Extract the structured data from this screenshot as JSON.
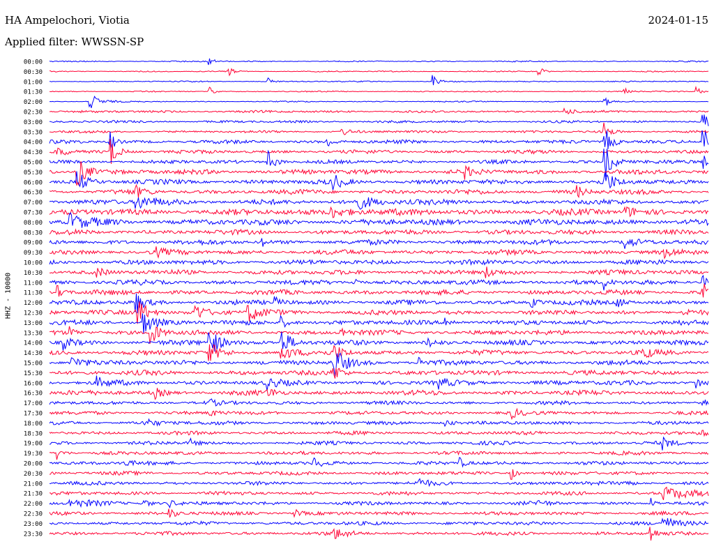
{
  "header": {
    "station": "HA Ampelochori, Viotia",
    "date": "2024-01-15",
    "filter": "Applied filter: WWSSN-SP"
  },
  "chart_data": {
    "type": "line",
    "title": "HA Ampelochori, Viotia",
    "date": "2024-01-15",
    "filter": "WWSSN-SP",
    "ylabel": "HHZ - 10000",
    "colors": {
      "even_hour": "#0000ff",
      "half_hour": "#ff0033"
    },
    "rows": [
      "00:00",
      "00:30",
      "01:00",
      "01:30",
      "02:00",
      "02:30",
      "03:00",
      "03:30",
      "04:00",
      "04:30",
      "05:00",
      "05:30",
      "06:00",
      "06:30",
      "07:00",
      "07:30",
      "08:00",
      "08:30",
      "09:00",
      "09:30",
      "10:00",
      "10:30",
      "11:00",
      "11:30",
      "12:00",
      "12:30",
      "13:00",
      "13:30",
      "14:00",
      "14:30",
      "15:00",
      "15:30",
      "16:00",
      "16:30",
      "17:00",
      "17:30",
      "18:00",
      "18:30",
      "19:00",
      "19:30",
      "20:00",
      "20:30",
      "21:00",
      "21:30",
      "22:00",
      "22:30",
      "23:00",
      "23:30"
    ],
    "noise": [
      1,
      1,
      1,
      1,
      1,
      2,
      2,
      2,
      3,
      3,
      3,
      4,
      4,
      4,
      4,
      5,
      5,
      4,
      4,
      4,
      4,
      4,
      4,
      4,
      4,
      4,
      4,
      4,
      4,
      4,
      4,
      4,
      4,
      4,
      3,
      3,
      3,
      3,
      3,
      3,
      3,
      3,
      3,
      3,
      3,
      3,
      3,
      3
    ],
    "events": [
      {
        "row": 0,
        "t": 0.24,
        "amp": 5,
        "w": 0.01
      },
      {
        "row": 1,
        "t": 0.27,
        "amp": 10,
        "w": 0.006
      },
      {
        "row": 1,
        "t": 0.74,
        "amp": 12,
        "w": 0.006
      },
      {
        "row": 2,
        "t": 0.33,
        "amp": 7,
        "w": 0.005
      },
      {
        "row": 2,
        "t": 0.58,
        "amp": 10,
        "w": 0.008
      },
      {
        "row": 3,
        "t": 0.24,
        "amp": 14,
        "w": 0.005
      },
      {
        "row": 3,
        "t": 0.87,
        "amp": 9,
        "w": 0.006
      },
      {
        "row": 3,
        "t": 0.98,
        "amp": 10,
        "w": 0.006
      },
      {
        "row": 4,
        "t": 0.06,
        "amp": 14,
        "w": 0.012
      },
      {
        "row": 4,
        "t": 0.84,
        "amp": 16,
        "w": 0.005
      },
      {
        "row": 5,
        "t": 0.78,
        "amp": 6,
        "w": 0.01
      },
      {
        "row": 6,
        "t": 0.99,
        "amp": 20,
        "w": 0.008
      },
      {
        "row": 7,
        "t": 0.44,
        "amp": 8,
        "w": 0.01
      },
      {
        "row": 7,
        "t": 0.84,
        "amp": 16,
        "w": 0.008
      },
      {
        "row": 8,
        "t": 0.09,
        "amp": 24,
        "w": 0.006
      },
      {
        "row": 8,
        "t": 0.42,
        "amp": 10,
        "w": 0.008
      },
      {
        "row": 8,
        "t": 0.84,
        "amp": 28,
        "w": 0.01
      },
      {
        "row": 8,
        "t": 0.99,
        "amp": 28,
        "w": 0.01
      },
      {
        "row": 9,
        "t": 0.09,
        "amp": 24,
        "w": 0.01
      },
      {
        "row": 9,
        "t": 0.01,
        "amp": 12,
        "w": 0.01
      },
      {
        "row": 10,
        "t": 0.33,
        "amp": 18,
        "w": 0.01
      },
      {
        "row": 10,
        "t": 0.84,
        "amp": 30,
        "w": 0.012
      },
      {
        "row": 10,
        "t": 0.99,
        "amp": 22,
        "w": 0.01
      },
      {
        "row": 11,
        "t": 0.04,
        "amp": 26,
        "w": 0.014
      },
      {
        "row": 11,
        "t": 0.63,
        "amp": 8,
        "w": 0.01
      },
      {
        "row": 12,
        "t": 0.04,
        "amp": 18,
        "w": 0.012
      },
      {
        "row": 12,
        "t": 0.43,
        "amp": 12,
        "w": 0.01
      },
      {
        "row": 12,
        "t": 0.84,
        "amp": 20,
        "w": 0.012
      },
      {
        "row": 13,
        "t": 0.13,
        "amp": 8,
        "w": 0.01
      },
      {
        "row": 13,
        "t": 0.8,
        "amp": 8,
        "w": 0.01
      },
      {
        "row": 14,
        "t": 0.13,
        "amp": 10,
        "w": 0.03
      },
      {
        "row": 14,
        "t": 0.46,
        "amp": 12,
        "w": 0.03
      },
      {
        "row": 15,
        "t": 0.42,
        "amp": 10,
        "w": 0.03
      },
      {
        "row": 15,
        "t": 0.87,
        "amp": 9,
        "w": 0.02
      },
      {
        "row": 16,
        "t": 0.03,
        "amp": 12,
        "w": 0.02
      },
      {
        "row": 18,
        "t": 0.32,
        "amp": 10,
        "w": 0.006
      },
      {
        "row": 18,
        "t": 0.87,
        "amp": 12,
        "w": 0.012
      },
      {
        "row": 19,
        "t": 0.16,
        "amp": 7,
        "w": 0.01
      },
      {
        "row": 19,
        "t": 0.93,
        "amp": 8,
        "w": 0.01
      },
      {
        "row": 21,
        "t": 0.07,
        "amp": 8,
        "w": 0.01
      },
      {
        "row": 21,
        "t": 0.66,
        "amp": 10,
        "w": 0.01
      },
      {
        "row": 22,
        "t": 0.46,
        "amp": 12,
        "w": 0.006
      },
      {
        "row": 22,
        "t": 0.84,
        "amp": 14,
        "w": 0.006
      },
      {
        "row": 22,
        "t": 0.99,
        "amp": 14,
        "w": 0.006
      },
      {
        "row": 23,
        "t": 0.01,
        "amp": 12,
        "w": 0.008
      },
      {
        "row": 23,
        "t": 0.99,
        "amp": 16,
        "w": 0.008
      },
      {
        "row": 24,
        "t": 0.13,
        "amp": 18,
        "w": 0.01
      },
      {
        "row": 24,
        "t": 0.34,
        "amp": 8,
        "w": 0.01
      },
      {
        "row": 24,
        "t": 0.86,
        "amp": 10,
        "w": 0.01
      },
      {
        "row": 24,
        "t": 0.73,
        "amp": 8,
        "w": 0.01
      },
      {
        "row": 25,
        "t": 0.13,
        "amp": 26,
        "w": 0.014
      },
      {
        "row": 25,
        "t": 0.22,
        "amp": 14,
        "w": 0.01
      },
      {
        "row": 25,
        "t": 0.3,
        "amp": 14,
        "w": 0.018
      },
      {
        "row": 25,
        "t": 0.96,
        "amp": 10,
        "w": 0.008
      },
      {
        "row": 26,
        "t": 0.14,
        "amp": 22,
        "w": 0.014
      },
      {
        "row": 26,
        "t": 0.35,
        "amp": 10,
        "w": 0.01
      },
      {
        "row": 26,
        "t": 0.6,
        "amp": 8,
        "w": 0.01
      },
      {
        "row": 27,
        "t": 0.15,
        "amp": 24,
        "w": 0.012
      },
      {
        "row": 27,
        "t": 0.03,
        "amp": 8,
        "w": 0.008
      },
      {
        "row": 27,
        "t": 0.44,
        "amp": 10,
        "w": 0.01
      },
      {
        "row": 28,
        "t": 0.24,
        "amp": 26,
        "w": 0.014
      },
      {
        "row": 28,
        "t": 0.35,
        "amp": 22,
        "w": 0.014
      },
      {
        "row": 28,
        "t": 0.02,
        "amp": 10,
        "w": 0.012
      },
      {
        "row": 28,
        "t": 0.57,
        "amp": 9,
        "w": 0.01
      },
      {
        "row": 29,
        "t": 0.24,
        "amp": 18,
        "w": 0.012
      },
      {
        "row": 29,
        "t": 0.35,
        "amp": 16,
        "w": 0.012
      },
      {
        "row": 29,
        "t": 0.43,
        "amp": 14,
        "w": 0.012
      },
      {
        "row": 29,
        "t": 0.9,
        "amp": 12,
        "w": 0.008
      },
      {
        "row": 30,
        "t": 0.03,
        "amp": 10,
        "w": 0.02
      },
      {
        "row": 30,
        "t": 0.43,
        "amp": 26,
        "w": 0.014
      },
      {
        "row": 30,
        "t": 0.56,
        "amp": 9,
        "w": 0.01
      },
      {
        "row": 31,
        "t": 0.43,
        "amp": 14,
        "w": 0.01
      },
      {
        "row": 32,
        "t": 0.07,
        "amp": 8,
        "w": 0.012
      },
      {
        "row": 32,
        "t": 0.33,
        "amp": 9,
        "w": 0.01
      },
      {
        "row": 32,
        "t": 0.59,
        "amp": 8,
        "w": 0.01
      },
      {
        "row": 32,
        "t": 0.98,
        "amp": 10,
        "w": 0.008
      },
      {
        "row": 33,
        "t": 0.16,
        "amp": 7,
        "w": 0.01
      },
      {
        "row": 33,
        "t": 0.33,
        "amp": 8,
        "w": 0.01
      },
      {
        "row": 34,
        "t": 0.24,
        "amp": 6,
        "w": 0.01
      },
      {
        "row": 34,
        "t": 0.99,
        "amp": 6,
        "w": 0.01
      },
      {
        "row": 35,
        "t": 0.24,
        "amp": 7,
        "w": 0.01
      },
      {
        "row": 35,
        "t": 0.7,
        "amp": 8,
        "w": 0.01
      },
      {
        "row": 36,
        "t": 0.14,
        "amp": 7,
        "w": 0.02
      },
      {
        "row": 36,
        "t": 0.6,
        "amp": 6,
        "w": 0.01
      },
      {
        "row": 37,
        "t": 0.99,
        "amp": 10,
        "w": 0.008
      },
      {
        "row": 38,
        "t": 0.21,
        "amp": 8,
        "w": 0.01
      },
      {
        "row": 38,
        "t": 0.93,
        "amp": 8,
        "w": 0.01
      },
      {
        "row": 39,
        "t": 0.01,
        "amp": 10,
        "w": 0.008
      },
      {
        "row": 40,
        "t": 0.11,
        "amp": 7,
        "w": 0.01
      },
      {
        "row": 40,
        "t": 0.4,
        "amp": 8,
        "w": 0.01
      },
      {
        "row": 40,
        "t": 0.62,
        "amp": 9,
        "w": 0.008
      },
      {
        "row": 41,
        "t": 0.7,
        "amp": 12,
        "w": 0.006
      },
      {
        "row": 42,
        "t": 0.56,
        "amp": 7,
        "w": 0.01
      },
      {
        "row": 42,
        "t": 0.87,
        "amp": 8,
        "w": 0.01
      },
      {
        "row": 43,
        "t": 0.93,
        "amp": 9,
        "w": 0.05
      },
      {
        "row": 44,
        "t": 0.03,
        "amp": 5,
        "w": 0.04
      },
      {
        "row": 44,
        "t": 0.14,
        "amp": 10,
        "w": 0.008
      },
      {
        "row": 44,
        "t": 0.18,
        "amp": 8,
        "w": 0.006
      },
      {
        "row": 44,
        "t": 0.91,
        "amp": 12,
        "w": 0.006
      },
      {
        "row": 44,
        "t": 0.74,
        "amp": 6,
        "w": 0.008
      },
      {
        "row": 45,
        "t": 0.18,
        "amp": 8,
        "w": 0.01
      },
      {
        "row": 45,
        "t": 0.37,
        "amp": 7,
        "w": 0.01
      },
      {
        "row": 46,
        "t": 0.93,
        "amp": 10,
        "w": 0.02
      },
      {
        "row": 47,
        "t": 0.43,
        "amp": 7,
        "w": 0.02
      },
      {
        "row": 47,
        "t": 0.91,
        "amp": 18,
        "w": 0.006
      }
    ]
  }
}
